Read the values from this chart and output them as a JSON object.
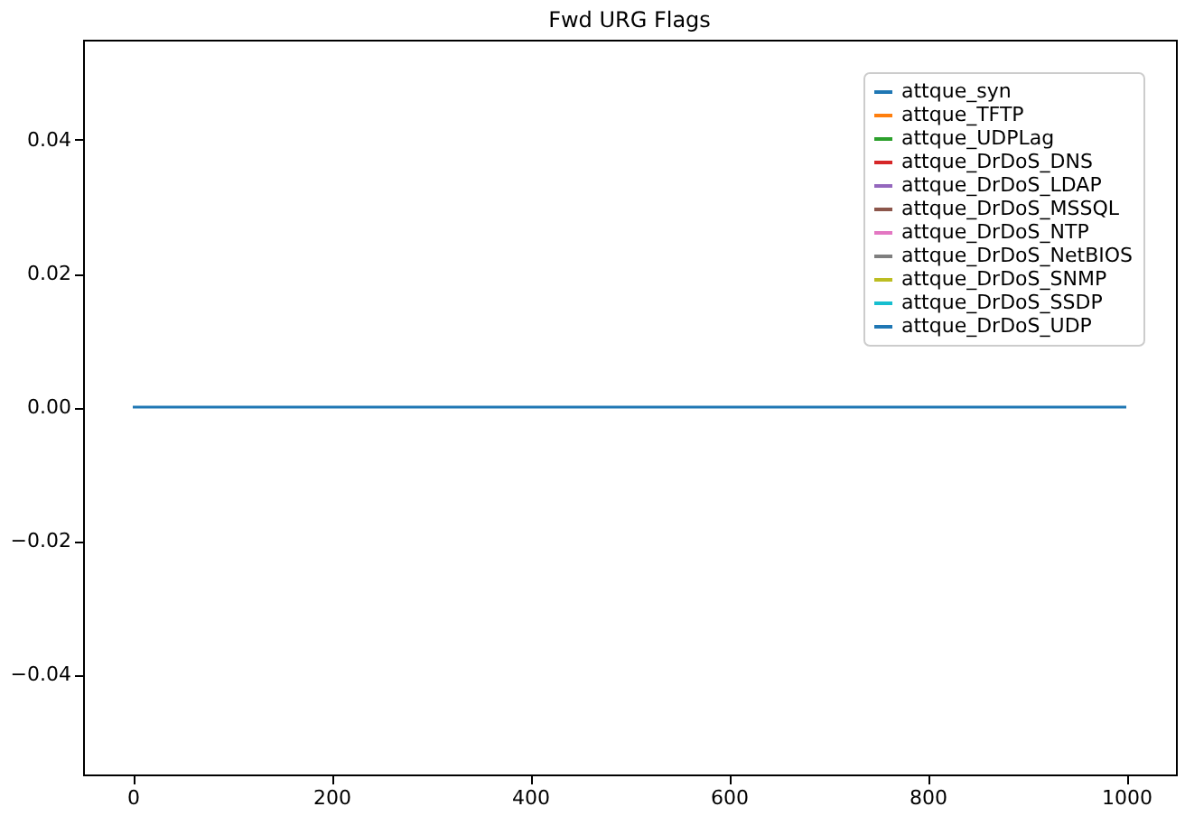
{
  "chart_data": {
    "type": "line",
    "title": "Fwd URG Flags",
    "x": [
      0,
      1000
    ],
    "xlim": [
      -50,
      1050
    ],
    "xticks": [
      0,
      200,
      400,
      600,
      800,
      1000
    ],
    "ylim": [
      -0.055,
      0.055
    ],
    "yticks": [
      {
        "value": -0.04,
        "label": "−0.04"
      },
      {
        "value": -0.02,
        "label": "−0.02"
      },
      {
        "value": 0,
        "label": "0.00"
      },
      {
        "value": 0.02,
        "label": "0.02"
      },
      {
        "value": 0.04,
        "label": "0.04"
      }
    ],
    "grid": false,
    "legend": "top right",
    "marker": "none",
    "line_style": "solid",
    "series": [
      {
        "name": "attque_syn",
        "color": "#1f77b4",
        "values": [
          null,
          null
        ]
      },
      {
        "name": "attque_TFTP",
        "color": "#ff7f0e",
        "values": [
          null,
          null
        ]
      },
      {
        "name": "attque_UDPLag",
        "color": "#2ca02c",
        "values": [
          null,
          null
        ]
      },
      {
        "name": "attque_DrDoS_DNS",
        "color": "#d62728",
        "values": [
          null,
          null
        ]
      },
      {
        "name": "attque_DrDoS_LDAP",
        "color": "#9467bd",
        "values": [
          null,
          null
        ]
      },
      {
        "name": "attque_DrDoS_MSSQL",
        "color": "#8c564b",
        "values": [
          null,
          null
        ]
      },
      {
        "name": "attque_DrDoS_NTP",
        "color": "#e377c2",
        "values": [
          null,
          null
        ]
      },
      {
        "name": "attque_DrDoS_NetBIOS",
        "color": "#7f7f7f",
        "values": [
          null,
          null
        ]
      },
      {
        "name": "attque_DrDoS_SNMP",
        "color": "#bcbd22",
        "values": [
          null,
          null
        ]
      },
      {
        "name": "attque_DrDoS_SSDP",
        "color": "#17becf",
        "values": [
          null,
          null
        ]
      },
      {
        "name": "attque_DrDoS_UDP",
        "color": "#1f77b4",
        "values": [
          0,
          0
        ]
      }
    ]
  }
}
